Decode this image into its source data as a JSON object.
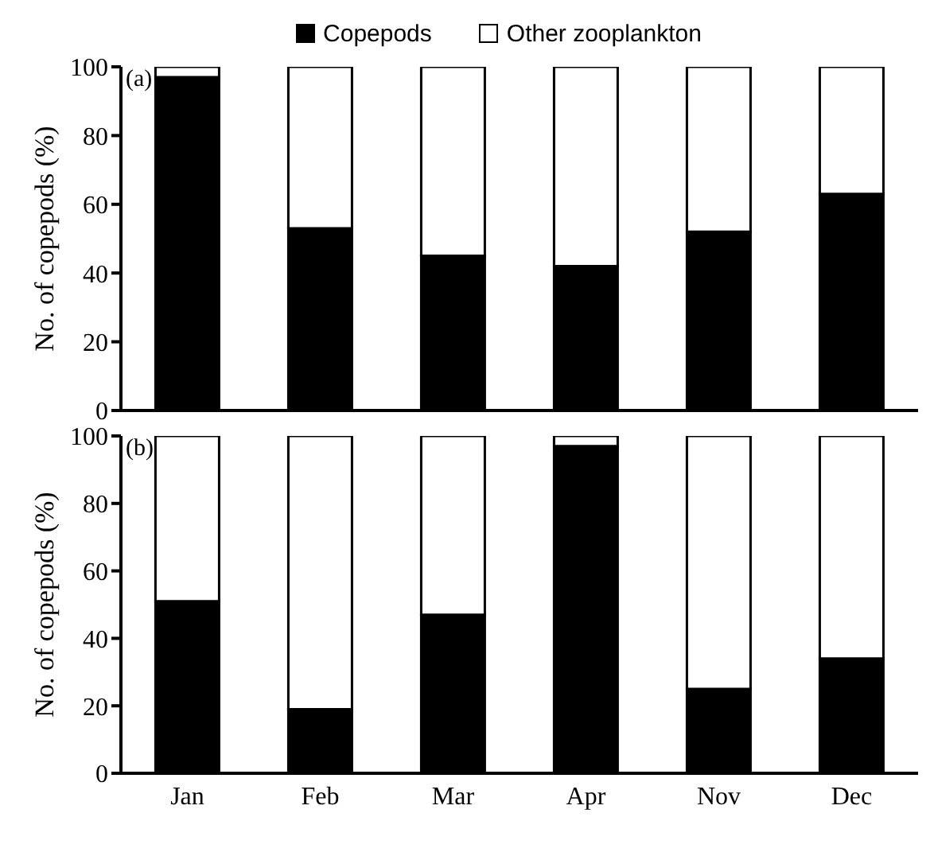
{
  "chart_data": [
    {
      "type": "bar",
      "stacked": true,
      "categories": [
        null,
        null,
        null,
        null,
        null,
        null
      ],
      "ylabel": "No. of copepods (%)",
      "ylim": [
        0,
        100
      ],
      "yticks": [
        0,
        20,
        40,
        60,
        80,
        100
      ],
      "grid": false,
      "legend": "top",
      "tick_labels": "y",
      "annotations": [
        "(a)"
      ],
      "series": [
        {
          "name": "Copepods",
          "color": "#000000",
          "values": [
            97,
            53,
            45,
            42,
            52,
            63
          ]
        },
        {
          "name": "Other zooplankton",
          "color": "#ffffff",
          "values": [
            3,
            47,
            55,
            58,
            48,
            37
          ]
        }
      ]
    },
    {
      "type": "bar",
      "stacked": true,
      "categories": [
        "Jan",
        "Feb",
        "Mar",
        "Apr",
        "Nov",
        "Dec"
      ],
      "ylabel": "No. of copepods (%)",
      "ylim": [
        0,
        100
      ],
      "yticks": [
        0,
        20,
        40,
        60,
        80,
        100
      ],
      "grid": false,
      "annotations": [
        "(b)"
      ],
      "series": [
        {
          "color": "#000000",
          "values": [
            51,
            19,
            47,
            97,
            25,
            34
          ]
        },
        {
          "color": "#ffffff",
          "values": [
            49,
            81,
            53,
            3,
            75,
            66
          ]
        }
      ]
    }
  ]
}
